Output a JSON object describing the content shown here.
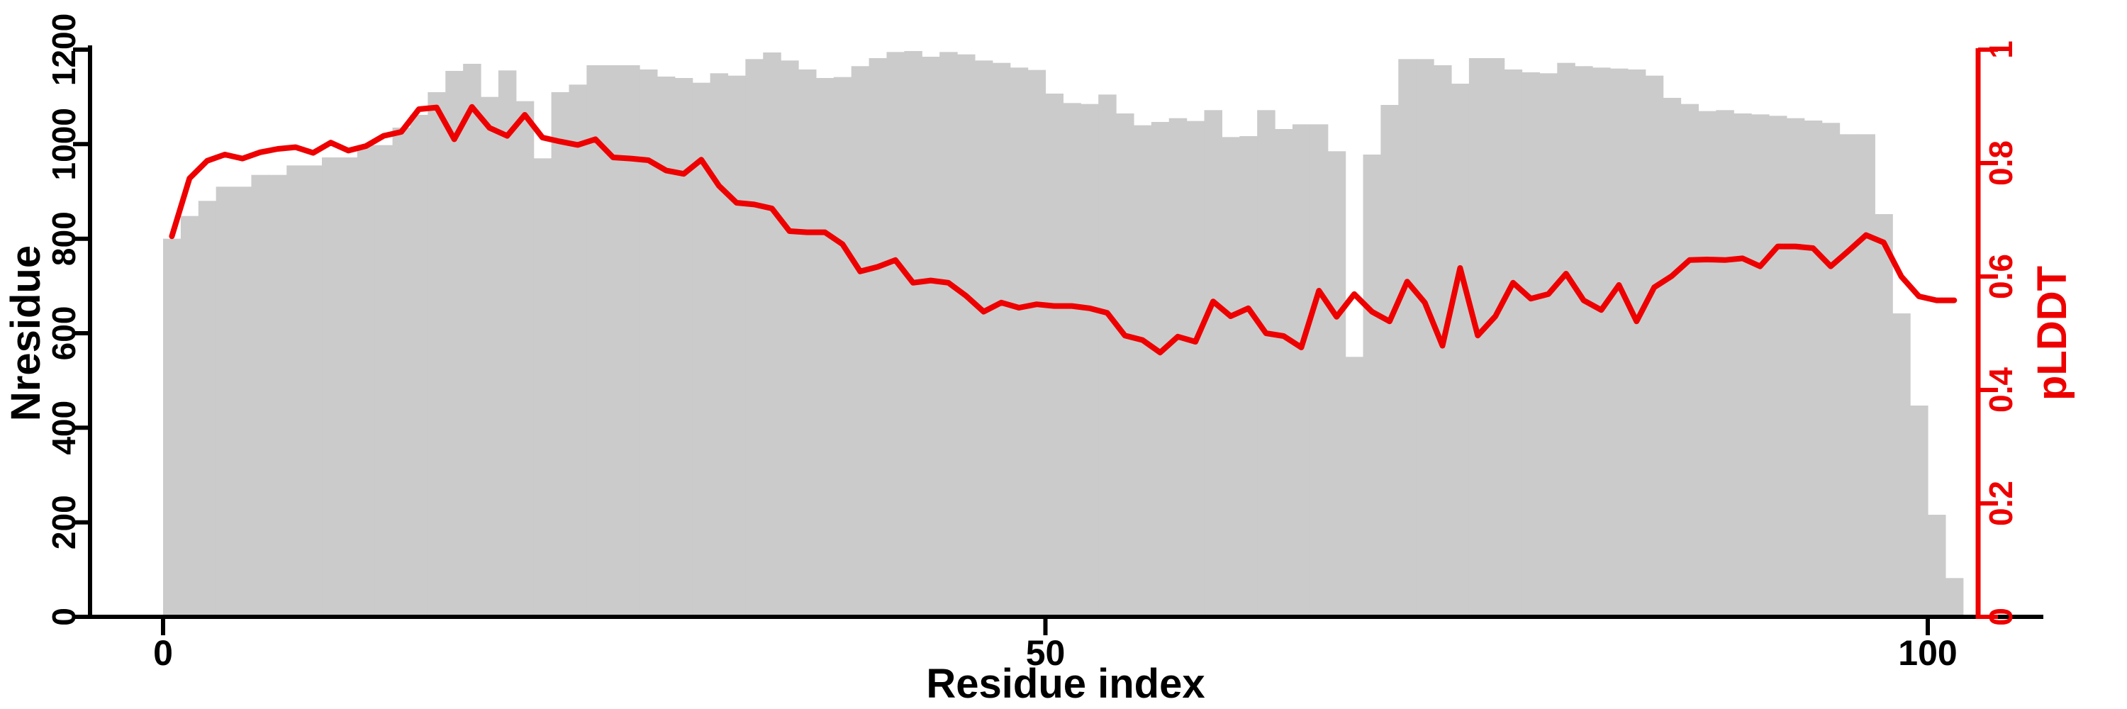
{
  "figure": {
    "kind": "residue-profile-plot",
    "background": "#ffffff"
  },
  "chart_data": {
    "type": "bar+line",
    "title": "",
    "xlabel": "Residue index",
    "x_start": 0,
    "n_positions": 102,
    "x_ticks": [
      0,
      50,
      100
    ],
    "grid": false,
    "legend": "none",
    "left_axis": {
      "label": "Nresidue",
      "lim": [
        0,
        1200
      ],
      "ticks": [
        0,
        200,
        400,
        600,
        800,
        1000,
        1200
      ],
      "color": "#000000"
    },
    "right_axis": {
      "label": "pLDDT",
      "lim": [
        0,
        1
      ],
      "ticks": [
        0,
        0.2,
        0.4,
        0.6,
        0.8,
        1
      ],
      "color": "#ee0000"
    },
    "series": [
      {
        "name": "Nresidue",
        "type": "bar",
        "axis": "left",
        "color": "#cbcbcb",
        "values": [
          800,
          848,
          880,
          910,
          910,
          935,
          935,
          955,
          955,
          972,
          972,
          998,
          998,
          1035,
          1062,
          1110,
          1155,
          1170,
          1100,
          1156,
          1091,
          970,
          1110,
          1126,
          1167,
          1167,
          1167,
          1158,
          1143,
          1140,
          1130,
          1150,
          1145,
          1180,
          1194,
          1177,
          1158,
          1140,
          1142,
          1165,
          1182,
          1195,
          1197,
          1185,
          1195,
          1190,
          1177,
          1172,
          1162,
          1157,
          1107,
          1087,
          1085,
          1105,
          1065,
          1040,
          1047,
          1055,
          1049,
          1072,
          1015,
          1017,
          1072,
          1032,
          1042,
          1042,
          985,
          550,
          978,
          1083,
          1180,
          1180,
          1167,
          1128,
          1182,
          1182,
          1158,
          1152,
          1150,
          1172,
          1165,
          1162,
          1160,
          1158,
          1145,
          1098,
          1085,
          1070,
          1072,
          1065,
          1063,
          1060,
          1055,
          1050,
          1045,
          1021,
          1021,
          852,
          642,
          447,
          216,
          82
        ]
      },
      {
        "name": "pLDDT",
        "type": "line",
        "axis": "right",
        "color": "#ee0000",
        "values": [
          0.671,
          0.773,
          0.804,
          0.815,
          0.808,
          0.819,
          0.825,
          0.828,
          0.818,
          0.836,
          0.822,
          0.83,
          0.848,
          0.855,
          0.895,
          0.898,
          0.842,
          0.899,
          0.862,
          0.848,
          0.885,
          0.845,
          0.838,
          0.832,
          0.842,
          0.81,
          0.808,
          0.805,
          0.787,
          0.781,
          0.806,
          0.76,
          0.73,
          0.727,
          0.72,
          0.68,
          0.678,
          0.678,
          0.657,
          0.609,
          0.617,
          0.629,
          0.589,
          0.593,
          0.589,
          0.566,
          0.538,
          0.554,
          0.545,
          0.551,
          0.548,
          0.548,
          0.544,
          0.536,
          0.496,
          0.488,
          0.466,
          0.494,
          0.485,
          0.556,
          0.53,
          0.544,
          0.5,
          0.495,
          0.475,
          0.575,
          0.529,
          0.569,
          0.538,
          0.521,
          0.591,
          0.554,
          0.478,
          0.615,
          0.496,
          0.53,
          0.589,
          0.561,
          0.569,
          0.605,
          0.558,
          0.541,
          0.585,
          0.521,
          0.581,
          0.601,
          0.629,
          0.63,
          0.629,
          0.632,
          0.618,
          0.653,
          0.653,
          0.65,
          0.618,
          0.645,
          0.673,
          0.66,
          0.6,
          0.565,
          0.558,
          0.558
        ]
      }
    ]
  }
}
